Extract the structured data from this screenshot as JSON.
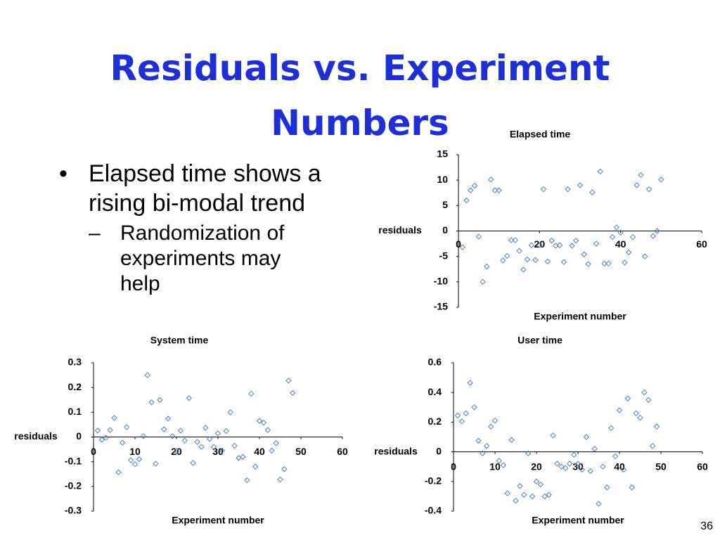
{
  "title": "Residuals vs. Experiment Numbers",
  "bullets": [
    {
      "text": "Elapsed time shows a rising bi-modal trend",
      "sub": [
        "Randomization of experiments may help"
      ]
    }
  ],
  "page_number": "36",
  "chart_data": [
    {
      "type": "scatter",
      "title": "Elapsed time",
      "xlabel": "Experiment number",
      "ylabel": "residuals",
      "color": "#4f81bd",
      "x": [
        1,
        2,
        3,
        4,
        5,
        6,
        7,
        8,
        9,
        10,
        11,
        12,
        13,
        14,
        15,
        16,
        17,
        18,
        19,
        20,
        21,
        22,
        23,
        24,
        25,
        26,
        27,
        28,
        29,
        30,
        31,
        32,
        33,
        34,
        35,
        36,
        37,
        38,
        39,
        40,
        41,
        42,
        43,
        44,
        45,
        46,
        47,
        48,
        49,
        50
      ],
      "y": [
        -3.2,
        6,
        8,
        8.9,
        -1.1,
        -10,
        -7,
        10.1,
        8,
        8,
        -5.8,
        -4.9,
        -1.8,
        -1.8,
        -3.9,
        -7.6,
        -5.6,
        -2.8,
        -5.7,
        -2.8,
        8.2,
        -6,
        -1.9,
        -2.9,
        -2.8,
        -6.1,
        8.2,
        -2.9,
        -1.9,
        9,
        -4.6,
        -6.5,
        7.6,
        -2.5,
        11.7,
        -6.4,
        -6.4,
        -1.2,
        0.7,
        -0.3,
        -6.2,
        -4.2,
        -1.2,
        9,
        11,
        -5,
        8.2,
        -1,
        0,
        10.1
      ],
      "xlim": [
        0,
        60
      ],
      "xticks": [
        0,
        20,
        40,
        60
      ],
      "ylim": [
        -15,
        15
      ],
      "yticks": [
        15,
        10,
        5,
        0,
        -5,
        -10,
        -15
      ]
    },
    {
      "type": "scatter",
      "title": "System time",
      "xlabel": "Experiment number",
      "ylabel": "residuals",
      "color": "#4f81bd",
      "x": [
        1,
        2,
        3,
        4,
        5,
        6,
        7,
        8,
        9,
        10,
        11,
        12,
        13,
        14,
        15,
        16,
        17,
        18,
        19,
        20,
        21,
        22,
        23,
        24,
        25,
        26,
        27,
        28,
        29,
        30,
        31,
        32,
        33,
        34,
        35,
        36,
        37,
        38,
        39,
        40,
        41,
        42,
        43,
        44,
        45,
        46,
        47,
        48
      ],
      "y": [
        0.026,
        -0.011,
        -0.003,
        0.028,
        0.077,
        -0.143,
        -0.023,
        0.04,
        -0.094,
        -0.11,
        -0.09,
        0.003,
        0.25,
        0.14,
        -0.108,
        0.15,
        0.031,
        0.074,
        0.003,
        -0.057,
        0.026,
        -0.014,
        0.157,
        -0.105,
        -0.02,
        -0.04,
        0.037,
        -0.008,
        -0.04,
        0.015,
        -0.055,
        0.024,
        0.1,
        -0.035,
        -0.085,
        -0.08,
        -0.175,
        0.175,
        -0.12,
        0.065,
        0.058,
        0.028,
        -0.055,
        -0.025,
        -0.172,
        -0.13,
        0.228,
        0.178
      ],
      "xlim": [
        0,
        60
      ],
      "xticks": [
        0,
        10,
        20,
        30,
        40,
        50,
        60
      ],
      "ylim": [
        -0.3,
        0.3
      ],
      "yticks": [
        0.3,
        0.2,
        0.1,
        0,
        -0.1,
        -0.2,
        -0.3
      ]
    },
    {
      "type": "scatter",
      "title": "User time",
      "xlabel": "Experiment number",
      "ylabel": "residuals",
      "color": "#4f81bd",
      "x": [
        1,
        2,
        3,
        4,
        5,
        6,
        7,
        8,
        9,
        10,
        11,
        12,
        13,
        14,
        15,
        16,
        17,
        18,
        19,
        20,
        21,
        22,
        23,
        24,
        25,
        26,
        27,
        28,
        29,
        30,
        31,
        32,
        33,
        34,
        35,
        36,
        37,
        38,
        39,
        40,
        41,
        42,
        43,
        44,
        45,
        46,
        47,
        48,
        49
      ],
      "y": [
        0.245,
        0.205,
        0.26,
        0.465,
        0.3,
        0.075,
        -0.01,
        0.04,
        0.17,
        0.21,
        -0.06,
        -0.09,
        -0.28,
        0.08,
        -0.33,
        -0.23,
        -0.29,
        -0.01,
        -0.3,
        -0.2,
        -0.22,
        -0.3,
        -0.29,
        0.11,
        -0.08,
        -0.1,
        -0.11,
        -0.08,
        -0.02,
        -0.08,
        -0.12,
        0.1,
        -0.13,
        0.02,
        -0.35,
        -0.1,
        -0.24,
        0.16,
        -0.03,
        0.28,
        -0.12,
        0.36,
        -0.24,
        0.26,
        0.23,
        0.4,
        0.35,
        0.04,
        0.17
      ],
      "xlim": [
        0,
        60
      ],
      "xticks": [
        0,
        10,
        20,
        30,
        40,
        50,
        60
      ],
      "ylim": [
        -0.4,
        0.6
      ],
      "yticks": [
        0.6,
        0.4,
        0.2,
        0,
        -0.2,
        -0.4
      ]
    }
  ]
}
